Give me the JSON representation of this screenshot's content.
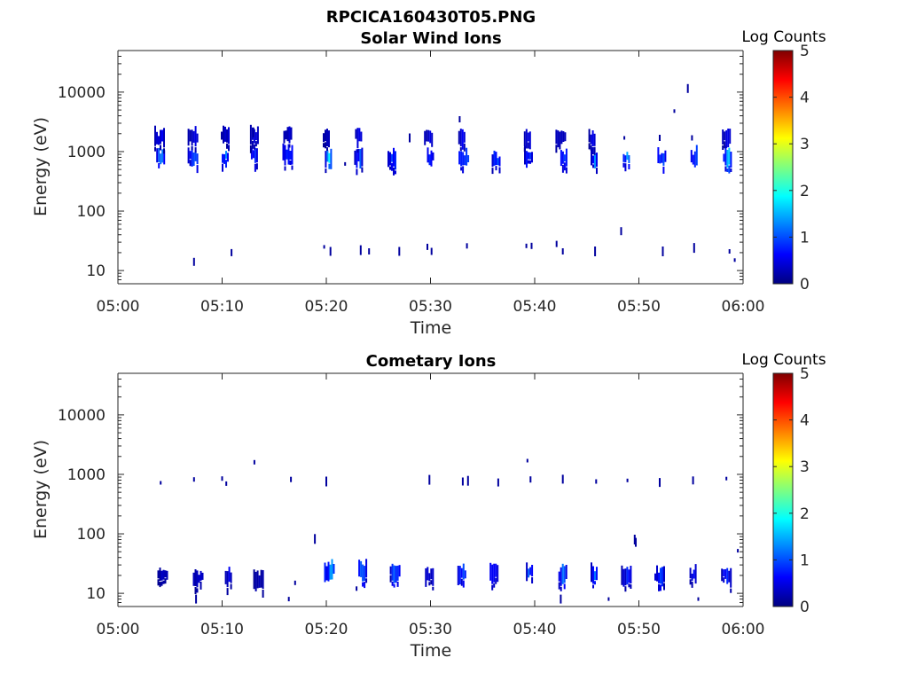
{
  "figure_title": "RPCICA160430T05.PNG",
  "palette": [
    "#00007f",
    "#0000ff",
    "#007fff",
    "#00ffff",
    "#7fff7f",
    "#ffff00",
    "#ff7f00",
    "#ff0000",
    "#7f0000"
  ],
  "chart_data": [
    {
      "type": "heatmap",
      "title": "Solar Wind Ions",
      "xlabel": "Time",
      "ylabel": "Energy (eV)",
      "y_scale": "log",
      "ylim": [
        6,
        50000
      ],
      "xlim": [
        "05:00",
        "06:00"
      ],
      "x_ticks": [
        "05:00",
        "05:10",
        "05:20",
        "05:30",
        "05:40",
        "05:50",
        "06:00"
      ],
      "y_ticks": [
        "10",
        "100",
        "1000",
        "10000"
      ],
      "colorbar": {
        "label": "Log Counts",
        "range": [
          0,
          5
        ],
        "ticks": [
          "0",
          "1",
          "2",
          "3",
          "4",
          "5"
        ]
      },
      "clusters": [
        {
          "t": 4.1,
          "e": 800,
          "level": 1.3
        },
        {
          "t": 4.0,
          "e": 1700,
          "level": 0.6
        },
        {
          "t": 7.2,
          "e": 800,
          "level": 1.1
        },
        {
          "t": 7.2,
          "e": 1800,
          "level": 0.5
        },
        {
          "t": 10.3,
          "e": 800,
          "level": 1.4
        },
        {
          "t": 10.3,
          "e": 1800,
          "level": 0.5
        },
        {
          "t": 13.1,
          "e": 850,
          "level": 1.0
        },
        {
          "t": 13.1,
          "e": 2000,
          "level": 0.5
        },
        {
          "t": 16.3,
          "e": 900,
          "level": 1.2
        },
        {
          "t": 16.3,
          "e": 1900,
          "level": 0.5
        },
        {
          "t": 20.2,
          "e": 800,
          "level": 1.6
        },
        {
          "t": 20.0,
          "e": 1800,
          "level": 0.4
        },
        {
          "t": 23.1,
          "e": 800,
          "level": 1.0
        },
        {
          "t": 23.1,
          "e": 1800,
          "level": 0.6
        },
        {
          "t": 26.3,
          "e": 750,
          "level": 1.2
        },
        {
          "t": 30.0,
          "e": 800,
          "level": 1.1
        },
        {
          "t": 29.8,
          "e": 1700,
          "level": 0.5
        },
        {
          "t": 33.2,
          "e": 750,
          "level": 1.3
        },
        {
          "t": 33.0,
          "e": 1700,
          "level": 0.5
        },
        {
          "t": 36.3,
          "e": 750,
          "level": 1.2
        },
        {
          "t": 39.4,
          "e": 800,
          "level": 1.0
        },
        {
          "t": 39.3,
          "e": 1700,
          "level": 0.5
        },
        {
          "t": 42.8,
          "e": 750,
          "level": 1.2
        },
        {
          "t": 42.5,
          "e": 1700,
          "level": 0.5
        },
        {
          "t": 45.7,
          "e": 750,
          "level": 1.1
        },
        {
          "t": 45.5,
          "e": 1700,
          "level": 0.5
        },
        {
          "t": 48.8,
          "e": 800,
          "level": 1.3
        },
        {
          "t": 52.2,
          "e": 800,
          "level": 1.2
        },
        {
          "t": 55.3,
          "e": 800,
          "level": 1.1
        },
        {
          "t": 58.5,
          "e": 800,
          "level": 1.5
        },
        {
          "t": 58.4,
          "e": 1700,
          "level": 0.5
        }
      ],
      "points": [
        {
          "t": 7.3,
          "e": 14
        },
        {
          "t": 10.9,
          "e": 20
        },
        {
          "t": 19.8,
          "e": 25
        },
        {
          "t": 20.4,
          "e": 21
        },
        {
          "t": 23.3,
          "e": 22
        },
        {
          "t": 24.1,
          "e": 21
        },
        {
          "t": 27.0,
          "e": 21
        },
        {
          "t": 29.7,
          "e": 25
        },
        {
          "t": 30.1,
          "e": 21
        },
        {
          "t": 33.5,
          "e": 26
        },
        {
          "t": 32.8,
          "e": 3500
        },
        {
          "t": 39.2,
          "e": 26
        },
        {
          "t": 39.7,
          "e": 26
        },
        {
          "t": 42.1,
          "e": 28
        },
        {
          "t": 42.7,
          "e": 21
        },
        {
          "t": 45.8,
          "e": 21
        },
        {
          "t": 48.3,
          "e": 46
        },
        {
          "t": 52.3,
          "e": 21
        },
        {
          "t": 53.4,
          "e": 4800
        },
        {
          "t": 54.7,
          "e": 11500
        },
        {
          "t": 55.3,
          "e": 24
        },
        {
          "t": 58.7,
          "e": 21
        },
        {
          "t": 59.2,
          "e": 15
        },
        {
          "t": 21.8,
          "e": 620
        },
        {
          "t": 28.0,
          "e": 1700
        },
        {
          "t": 48.6,
          "e": 1700
        },
        {
          "t": 52.0,
          "e": 1700
        },
        {
          "t": 55.1,
          "e": 1700
        },
        {
          "t": 13.0,
          "e": 2100
        }
      ]
    },
    {
      "type": "heatmap",
      "title": "Cometary Ions",
      "xlabel": "Time",
      "ylabel": "Energy (eV)",
      "y_scale": "log",
      "ylim": [
        6,
        50000
      ],
      "xlim": [
        "05:00",
        "06:00"
      ],
      "x_ticks": [
        "05:00",
        "05:10",
        "05:20",
        "05:30",
        "05:40",
        "05:50",
        "06:00"
      ],
      "y_ticks": [
        "10",
        "100",
        "1000",
        "10000"
      ],
      "colorbar": {
        "label": "Log Counts",
        "range": [
          0,
          5
        ],
        "ticks": [
          "0",
          "1",
          "2",
          "3",
          "4",
          "5"
        ]
      },
      "clusters": [
        {
          "t": 4.3,
          "e": 20,
          "level": 0.4
        },
        {
          "t": 7.7,
          "e": 19,
          "level": 0.5
        },
        {
          "t": 10.6,
          "e": 19,
          "level": 0.6
        },
        {
          "t": 13.5,
          "e": 17,
          "level": 0.3
        },
        {
          "t": 20.3,
          "e": 24,
          "level": 1.4
        },
        {
          "t": 23.5,
          "e": 24,
          "level": 1.2
        },
        {
          "t": 26.6,
          "e": 22,
          "level": 1.1
        },
        {
          "t": 29.9,
          "e": 20,
          "level": 0.6
        },
        {
          "t": 33.0,
          "e": 22,
          "level": 1.0
        },
        {
          "t": 36.1,
          "e": 22,
          "level": 1.0
        },
        {
          "t": 39.5,
          "e": 22,
          "level": 1.2
        },
        {
          "t": 42.7,
          "e": 21,
          "level": 1.1
        },
        {
          "t": 45.7,
          "e": 21,
          "level": 1.0
        },
        {
          "t": 48.8,
          "e": 20,
          "level": 0.7
        },
        {
          "t": 52.0,
          "e": 20,
          "level": 0.8
        },
        {
          "t": 55.2,
          "e": 20,
          "level": 0.7
        },
        {
          "t": 58.4,
          "e": 20,
          "level": 0.8
        }
      ],
      "points": [
        {
          "t": 4.1,
          "e": 720
        },
        {
          "t": 7.3,
          "e": 820
        },
        {
          "t": 10.0,
          "e": 850
        },
        {
          "t": 10.4,
          "e": 700
        },
        {
          "t": 13.1,
          "e": 1600
        },
        {
          "t": 16.6,
          "e": 820
        },
        {
          "t": 20.0,
          "e": 760
        },
        {
          "t": 18.9,
          "e": 82
        },
        {
          "t": 29.9,
          "e": 810
        },
        {
          "t": 33.1,
          "e": 760
        },
        {
          "t": 33.6,
          "e": 780
        },
        {
          "t": 36.5,
          "e": 730
        },
        {
          "t": 39.3,
          "e": 1700
        },
        {
          "t": 39.6,
          "e": 820
        },
        {
          "t": 42.7,
          "e": 830
        },
        {
          "t": 45.9,
          "e": 760
        },
        {
          "t": 48.9,
          "e": 790
        },
        {
          "t": 52.0,
          "e": 730
        },
        {
          "t": 55.2,
          "e": 790
        },
        {
          "t": 58.4,
          "e": 850
        },
        {
          "t": 49.6,
          "e": 80
        },
        {
          "t": 49.7,
          "e": 72
        },
        {
          "t": 59.5,
          "e": 52
        },
        {
          "t": 7.5,
          "e": 8
        },
        {
          "t": 16.4,
          "e": 8
        },
        {
          "t": 22.9,
          "e": 12
        },
        {
          "t": 42.5,
          "e": 8
        },
        {
          "t": 47.1,
          "e": 8
        },
        {
          "t": 55.7,
          "e": 8
        },
        {
          "t": 17.0,
          "e": 15
        }
      ]
    }
  ]
}
